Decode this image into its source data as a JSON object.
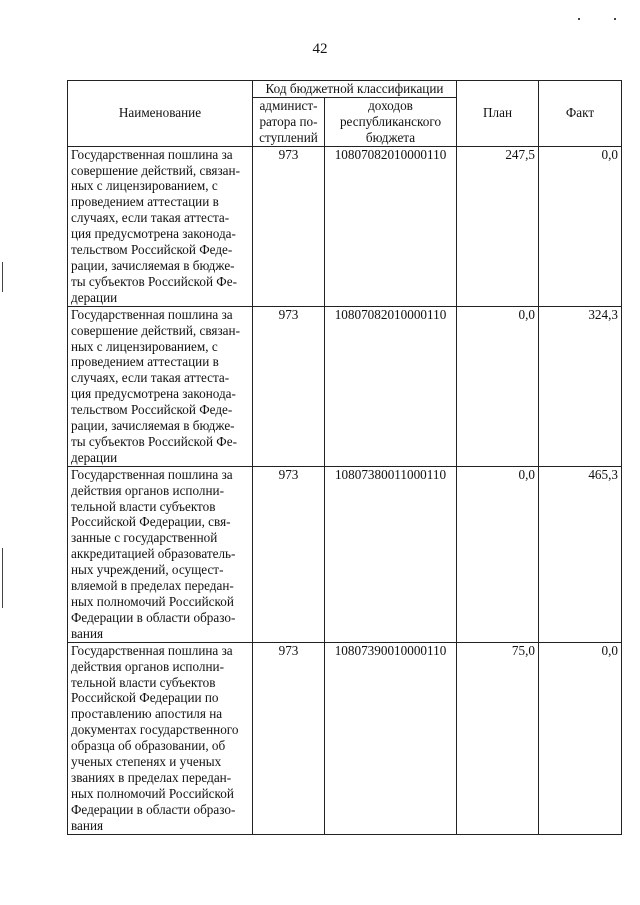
{
  "page_number": "42",
  "header": {
    "name": "Наименование",
    "code_group": "Код бюджетной классификации",
    "admin": [
      "админист-",
      "ратора по-",
      "ступлений"
    ],
    "income": [
      "доходов",
      "республиканского",
      "бюджета"
    ],
    "plan": "План",
    "fact": "Факт"
  },
  "rows": [
    {
      "name": [
        "Государственная пошлина за",
        "совершение действий, связан-",
        "ных с лицензированием, с",
        "проведением аттестации в",
        "случаях, если такая аттеста-",
        "ция предусмотрена законода-",
        "тельством Российской Феде-",
        "рации, зачисляемая в бюдже-",
        "ты субъектов Российской Фе-",
        "дерации"
      ],
      "admin": "973",
      "code": "10807082010000110",
      "plan": "247,5",
      "fact": "0,0"
    },
    {
      "name": [
        "Государственная пошлина за",
        "совершение действий, связан-",
        "ных с лицензированием, с",
        "проведением аттестации в",
        "случаях, если такая аттеста-",
        "ция предусмотрена законода-",
        "тельством Российской Феде-",
        "рации, зачисляемая в бюдже-",
        "ты субъектов Российской Фе-",
        "дерации"
      ],
      "admin": "973",
      "code": "10807082010000110",
      "plan": "0,0",
      "fact": "324,3"
    },
    {
      "name": [
        "Государственная пошлина за",
        "действия органов исполни-",
        "тельной власти субъектов",
        "Российской Федерации, свя-",
        "занные с государственной",
        "аккредитацией образователь-",
        "ных учреждений, осущест-",
        "вляемой в пределах передан-",
        "ных полномочий Российской",
        "Федерации в области образо-",
        "вания"
      ],
      "admin": "973",
      "code": "10807380011000110",
      "plan": "0,0",
      "fact": "465,3"
    },
    {
      "name": [
        "Государственная пошлина за",
        "действия органов исполни-",
        "тельной власти субъектов",
        "Российской Федерации по",
        "проставлению апостиля на",
        "документах государственного",
        "образца об образовании, об",
        "ученых степенях и ученых",
        "званиях в пределах передан-",
        "ных полномочий Российской",
        "Федерации в области образо-",
        "вания"
      ],
      "admin": "973",
      "code": "10807390010000110",
      "plan": "75,0",
      "fact": "0,0"
    }
  ]
}
